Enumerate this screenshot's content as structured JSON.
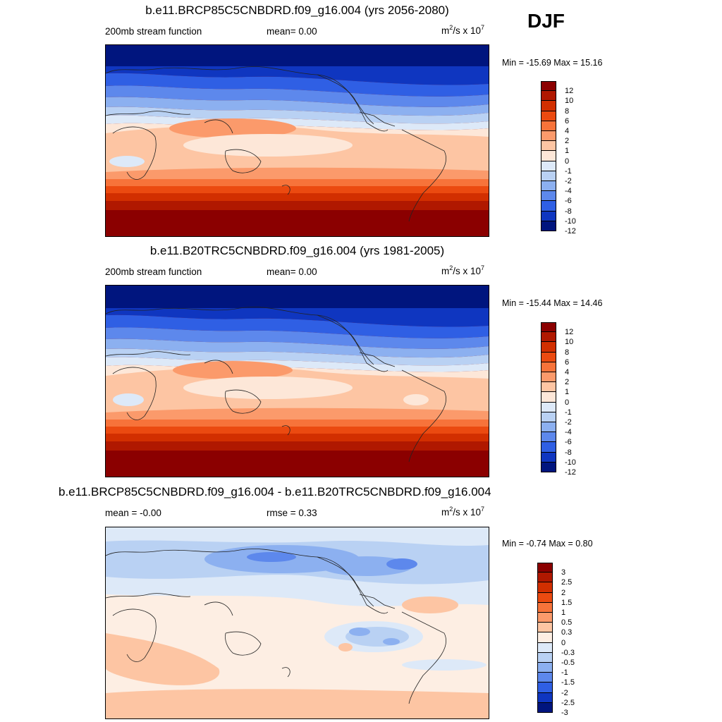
{
  "season": "DJF",
  "panels": [
    {
      "title": "b.e11.BRCP85C5CNBDRD.f09_g16.004 (yrs 2056-2080)",
      "left_label": "200mb stream function",
      "mid_label": "mean=   0.00",
      "units_base": "m",
      "units_sup1": "2",
      "units_mid": "/s x 10",
      "units_sup2": "7",
      "minmax": "Min = -15.69 Max =  15.16",
      "palette": "full",
      "levels": [
        "12",
        "10",
        "8",
        "6",
        "4",
        "2",
        "1",
        "0",
        "-1",
        "-2",
        "-4",
        "-6",
        "-8",
        "-10",
        "-12"
      ]
    },
    {
      "title": "b.e11.B20TRC5CNBDRD.f09_g16.004 (yrs 1981-2005)",
      "left_label": "200mb stream function",
      "mid_label": "mean=   0.00",
      "units_base": "m",
      "units_sup1": "2",
      "units_mid": "/s x 10",
      "units_sup2": "7",
      "minmax": "Min = -15.44 Max =  14.46",
      "palette": "full",
      "levels": [
        "12",
        "10",
        "8",
        "6",
        "4",
        "2",
        "1",
        "0",
        "-1",
        "-2",
        "-4",
        "-6",
        "-8",
        "-10",
        "-12"
      ]
    },
    {
      "title": "b.e11.BRCP85C5CNBDRD.f09_g16.004 - b.e11.B20TRC5CNBDRD.f09_g16.004",
      "left_label": "mean =  -0.00",
      "mid_label": "rmse =   0.33",
      "units_base": "m",
      "units_sup1": "2",
      "units_mid": "/s x 10",
      "units_sup2": "7",
      "minmax": "Min =  -0.74 Max =   0.80",
      "palette": "diff",
      "levels": [
        "3",
        "2.5",
        "2",
        "1.5",
        "1",
        "0.5",
        "0.3",
        "0",
        "-0.3",
        "-0.5",
        "-1",
        "-1.5",
        "-2",
        "-2.5",
        "-3"
      ]
    }
  ],
  "colors": {
    "full": [
      "#8b0000",
      "#b01800",
      "#d22f00",
      "#eb4a10",
      "#f7733a",
      "#fb9a6b",
      "#fdc5a3",
      "#fde7d8",
      "#dde9f8",
      "#b9d1f3",
      "#8cb0f0",
      "#5d88ec",
      "#2f5fe4",
      "#0f36c0",
      "#00157e"
    ],
    "diff": [
      "#8b0000",
      "#b01800",
      "#d22f00",
      "#eb4a10",
      "#f7733a",
      "#fb9a6b",
      "#fdc5a3",
      "#fdeee3",
      "#dde9f8",
      "#b9d1f3",
      "#8cb0f0",
      "#5d88ec",
      "#2f5fe4",
      "#0f36c0",
      "#00157e"
    ]
  },
  "chart_data": [
    {
      "type": "heatmap",
      "title": "b.e11.BRCP85C5CNBDRD.f09_g16.004 (yrs 2056-2080)",
      "variable": "200mb stream function",
      "units": "m^2/s x 10^7",
      "mean": 0.0,
      "min": -15.69,
      "max": 15.16,
      "colorbar_levels": [
        -12,
        -10,
        -8,
        -6,
        -4,
        -2,
        -1,
        0,
        1,
        2,
        4,
        6,
        8,
        10,
        12
      ],
      "season": "DJF"
    },
    {
      "type": "heatmap",
      "title": "b.e11.B20TRC5CNBDRD.f09_g16.004 (yrs 1981-2005)",
      "variable": "200mb stream function",
      "units": "m^2/s x 10^7",
      "mean": 0.0,
      "min": -15.44,
      "max": 14.46,
      "colorbar_levels": [
        -12,
        -10,
        -8,
        -6,
        -4,
        -2,
        -1,
        0,
        1,
        2,
        4,
        6,
        8,
        10,
        12
      ],
      "season": "DJF"
    },
    {
      "type": "heatmap",
      "title": "b.e11.BRCP85C5CNBDRD.f09_g16.004 - b.e11.B20TRC5CNBDRD.f09_g16.004",
      "units": "m^2/s x 10^7",
      "mean": -0.0,
      "rmse": 0.33,
      "min": -0.74,
      "max": 0.8,
      "colorbar_levels": [
        -3,
        -2.5,
        -2,
        -1.5,
        -1,
        -0.5,
        -0.3,
        0,
        0.3,
        0.5,
        1,
        1.5,
        2,
        2.5,
        3
      ],
      "season": "DJF"
    }
  ]
}
